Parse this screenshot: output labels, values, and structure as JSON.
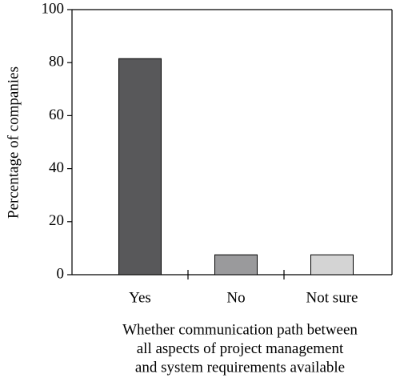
{
  "chart_data": {
    "type": "bar",
    "categories": [
      "Yes",
      "No",
      "Not sure"
    ],
    "values": [
      81.5,
      7.5,
      7.5
    ],
    "colors": [
      "#58585a",
      "#9a9a9c",
      "#d4d4d4"
    ],
    "ylabel": "Percentage of companies",
    "xlabel": [
      "Whether communication path between",
      "all aspects of project management",
      "and system requirements available"
    ],
    "ylim": [
      0,
      100
    ],
    "yticks": [
      0,
      20,
      40,
      60,
      80,
      100
    ],
    "grid": false
  }
}
